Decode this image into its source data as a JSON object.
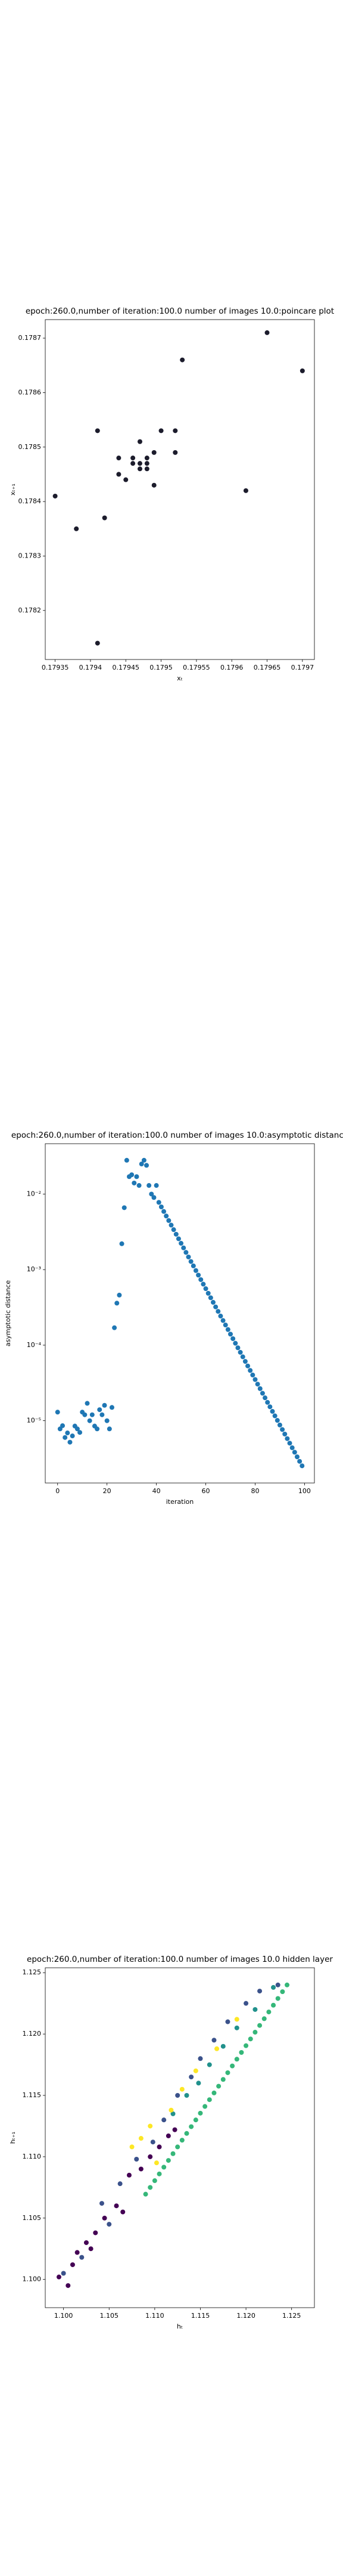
{
  "chart_data": [
    {
      "type": "scatter",
      "title": "epoch:260.0,number of iteration:100.0 number of images 10.0:poincare plot",
      "x_label": "xₜ",
      "y_label": "xₜ₊₁",
      "xlim": [
        0.179336,
        0.179717
      ],
      "ylim": [
        0.17811,
        0.178734
      ],
      "xticks": [
        0.17935,
        0.1794,
        0.17945,
        0.1795,
        0.17955,
        0.1796,
        0.17965,
        0.1797
      ],
      "yticks": [
        0.1782,
        0.1783,
        0.1784,
        0.1785,
        0.1786,
        0.1787
      ],
      "series": [
        {
          "color": "#1c1c2c",
          "x": [
            0.17935,
            0.17938,
            0.17941,
            0.17941,
            0.17942,
            0.17944,
            0.17945,
            0.17946,
            0.17946,
            0.17947,
            0.17947,
            0.17948,
            0.17947,
            0.17948,
            0.17949,
            0.17949,
            0.1795,
            0.17952,
            0.17952,
            0.17953,
            0.17962,
            0.17965,
            0.1797,
            0.17944,
            0.17948
          ],
          "values": [
            0.17841,
            0.17835,
            0.17853,
            0.17814,
            0.17837,
            0.17845,
            0.17844,
            0.17848,
            0.17847,
            0.17847,
            0.17846,
            0.17847,
            0.17851,
            0.17848,
            0.17849,
            0.17843,
            0.17853,
            0.17849,
            0.17853,
            0.17866,
            0.17842,
            0.17871,
            0.17864,
            0.17848,
            0.17846
          ]
        }
      ]
    },
    {
      "type": "scatter",
      "title": "epoch:260.0,number of iteration:100.0  number of images 10.0:asymptotic distance",
      "x_label": "iteration",
      "y_label": "asymptotic distance",
      "ylog": true,
      "xlim": [
        -5,
        104
      ],
      "ylim": [
        1.5e-06,
        0.0464
      ],
      "xticks": [
        0,
        20,
        40,
        60,
        80,
        100
      ],
      "yticks": [
        {
          "value": 1e-05,
          "label": "10⁻⁵"
        },
        {
          "value": 0.0001,
          "label": "10⁻⁴"
        },
        {
          "value": 0.001,
          "label": "10⁻³"
        },
        {
          "value": 0.01,
          "label": "10⁻²"
        }
      ],
      "series": [
        {
          "color": "#1f77b4",
          "x": [
            0,
            1,
            2,
            3,
            4,
            5,
            6,
            7,
            8,
            9,
            10,
            11,
            12,
            13,
            14,
            15,
            16,
            17,
            18,
            19,
            20,
            21,
            22,
            23,
            24,
            25,
            26,
            27,
            28,
            29,
            30,
            31,
            32,
            33,
            34,
            35,
            36,
            37,
            38,
            39,
            40,
            41,
            42,
            43,
            44,
            45,
            46,
            47,
            48,
            49,
            50,
            51,
            52,
            53,
            54,
            55,
            56,
            57,
            58,
            59,
            60,
            61,
            62,
            63,
            64,
            65,
            66,
            67,
            68,
            69,
            70,
            71,
            72,
            73,
            74,
            75,
            76,
            77,
            78,
            79,
            80,
            81,
            82,
            83,
            84,
            85,
            86,
            87,
            88,
            89,
            90,
            91,
            92,
            93,
            94,
            95,
            96,
            97,
            98,
            99
          ],
          "values": [
            1.3e-05,
            7.8e-06,
            8.6e-06,
            6e-06,
            6.9e-06,
            5.2e-06,
            6.3e-06,
            8.5e-06,
            7.8e-06,
            7e-06,
            1.3e-05,
            1.2e-05,
            1.7e-05,
            1e-05,
            1.2e-05,
            8.5e-06,
            7.8e-06,
            1.4e-05,
            1.2e-05,
            1.6e-05,
            1e-05,
            7.8e-06,
            1.5e-05,
            0.00017,
            0.00036,
            0.00046,
            0.0022,
            0.0066,
            0.028,
            0.017,
            0.018,
            0.014,
            0.017,
            0.013,
            0.025,
            0.028,
            0.024,
            0.013,
            0.01,
            0.009,
            0.013,
            0.00776,
            0.00676,
            0.00588,
            0.00512,
            0.00446,
            0.00388,
            0.00338,
            0.00294,
            0.00256,
            0.00223,
            0.00194,
            0.00169,
            0.00147,
            0.00128,
            0.00112,
            0.000972,
            0.000846,
            0.000737,
            0.000642,
            0.000559,
            0.000486,
            0.000424,
            0.000369,
            0.000321,
            0.00028,
            0.000243,
            0.000212,
            0.000185,
            0.000161,
            0.00014,
            0.000122,
            0.000106,
            9.24e-05,
            8.05e-05,
            7.01e-05,
            6.1e-05,
            5.31e-05,
            4.63e-05,
            4.03e-05,
            3.51e-05,
            3.05e-05,
            2.66e-05,
            2.31e-05,
            2.01e-05,
            1.75e-05,
            1.53e-05,
            1.33e-05,
            1.16e-05,
            1.01e-05,
            8.78e-06,
            7.65e-06,
            6.66e-06,
            5.8e-06,
            5.05e-06,
            4.39e-06,
            3.83e-06,
            3.33e-06,
            2.9e-06,
            2.53e-06
          ]
        }
      ]
    },
    {
      "type": "scatter",
      "title": "epoch:260.0,number of iteration:100.0  number of images 10.0 hidden layer",
      "x_label": "hₜ",
      "y_label": "hₜ₊₁",
      "xlim": [
        1.098,
        1.1275
      ],
      "ylim": [
        1.0977,
        1.1254
      ],
      "xticks": [
        1.1,
        1.105,
        1.11,
        1.115,
        1.12,
        1.125
      ],
      "yticks": [
        {
          "value": 1.1,
          "label": "1.100"
        },
        {
          "value": 1.105,
          "label": "1.105"
        },
        {
          "value": 1.11,
          "label": "1.110"
        },
        {
          "value": 1.115,
          "label": "1.115"
        },
        {
          "value": 1.12,
          "label": "1.120"
        },
        {
          "value": 1.125,
          "label": "1.125"
        }
      ],
      "xtick_labels": [
        "1.100",
        "1.105",
        "1.110",
        "1.115",
        "1.120",
        "1.125"
      ],
      "series": [
        {
          "color": "#35b779",
          "x": [
            1.109,
            1.1095,
            1.11,
            1.1105,
            1.111,
            1.1115,
            1.112,
            1.1125,
            1.113,
            1.1135,
            1.114,
            1.1145,
            1.115,
            1.1155,
            1.116,
            1.1165,
            1.117,
            1.1175,
            1.118,
            1.1185,
            1.119,
            1.1195,
            1.12,
            1.1205,
            1.121,
            1.1215,
            1.122,
            1.1225,
            1.123,
            1.1235,
            1.124,
            1.1245
          ],
          "values": [
            1.10695,
            1.1075,
            1.10805,
            1.1086,
            1.10915,
            1.1097,
            1.11025,
            1.1108,
            1.11135,
            1.1119,
            1.11245,
            1.113,
            1.11355,
            1.1141,
            1.11465,
            1.1152,
            1.11575,
            1.1163,
            1.11685,
            1.1174,
            1.11795,
            1.1185,
            1.11905,
            1.1196,
            1.12015,
            1.1207,
            1.12125,
            1.1218,
            1.12235,
            1.1229,
            1.12345,
            1.124
          ]
        },
        {
          "color": "#440154",
          "x": [
            1.0995,
            1.1005,
            1.101,
            1.1015,
            1.1025,
            1.103,
            1.1035,
            1.1045,
            1.1058,
            1.1065,
            1.1072,
            1.1085,
            1.1095,
            1.1105,
            1.1115,
            1.1122
          ],
          "values": [
            1.1002,
            1.0995,
            1.1012,
            1.1022,
            1.103,
            1.1025,
            1.1038,
            1.105,
            1.106,
            1.1055,
            1.1085,
            1.109,
            1.11,
            1.1108,
            1.1117,
            1.1122
          ]
        },
        {
          "color": "#3b528b",
          "x": [
            1.1,
            1.102,
            1.1042,
            1.105,
            1.1062,
            1.108,
            1.1098,
            1.111,
            1.1125,
            1.114,
            1.115,
            1.1165,
            1.118,
            1.12,
            1.1215,
            1.1235
          ],
          "values": [
            1.1005,
            1.1018,
            1.1062,
            1.1045,
            1.1078,
            1.1098,
            1.1112,
            1.113,
            1.115,
            1.1165,
            1.118,
            1.1195,
            1.121,
            1.1225,
            1.1235,
            1.124
          ]
        },
        {
          "color": "#21918c",
          "x": [
            1.112,
            1.1135,
            1.1148,
            1.116,
            1.1175,
            1.119,
            1.121,
            1.123
          ],
          "values": [
            1.1135,
            1.115,
            1.116,
            1.1175,
            1.119,
            1.1205,
            1.122,
            1.1238
          ]
        },
        {
          "color": "#fde725",
          "x": [
            1.1075,
            1.1085,
            1.1095,
            1.1102,
            1.1118,
            1.113,
            1.1145,
            1.1168,
            1.119
          ],
          "values": [
            1.1108,
            1.1115,
            1.1125,
            1.1095,
            1.1138,
            1.1155,
            1.117,
            1.1188,
            1.1212
          ]
        }
      ]
    }
  ]
}
